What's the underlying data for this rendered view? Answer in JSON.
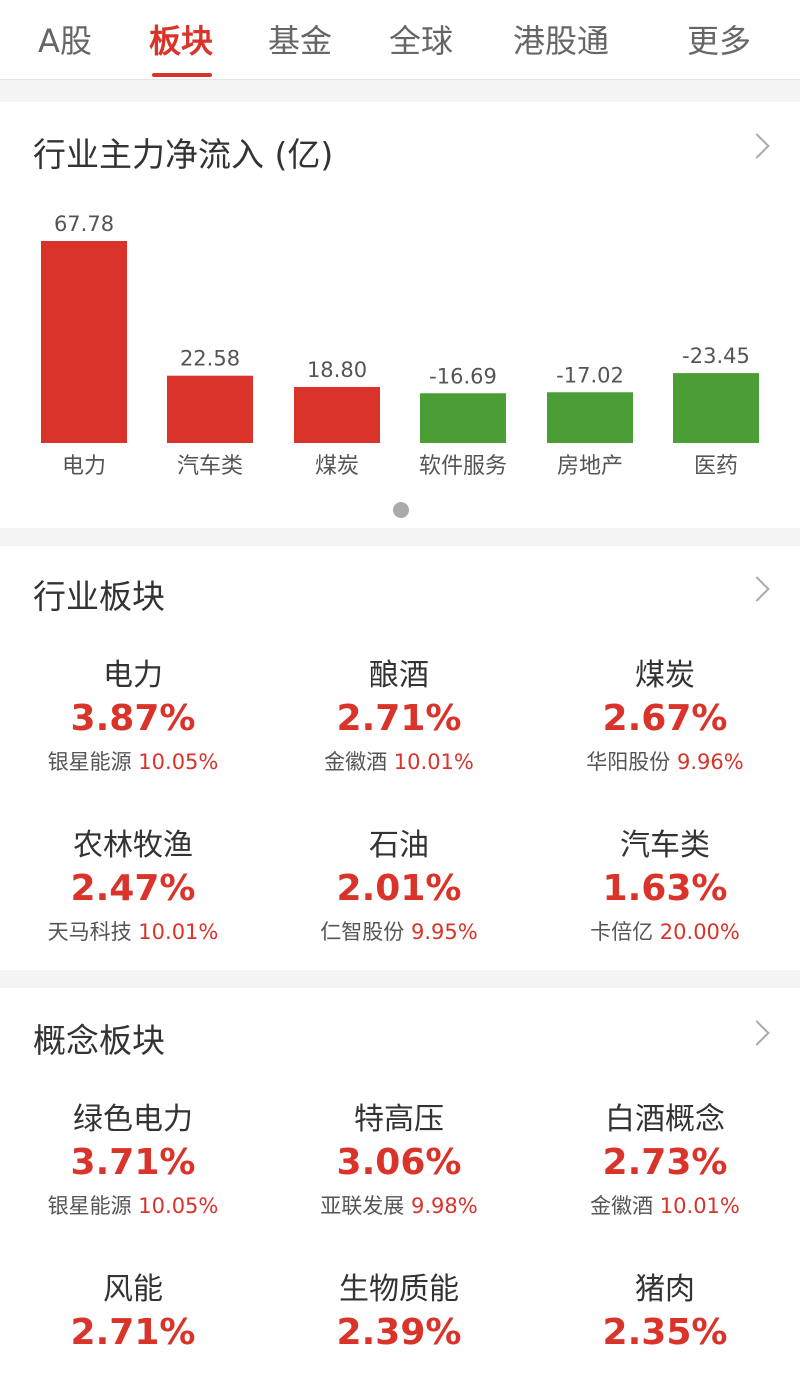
{
  "tabs": [
    {
      "label": "A股"
    },
    {
      "label": "板块",
      "active": true
    },
    {
      "label": "基金"
    },
    {
      "label": "全球"
    },
    {
      "label": "港股通"
    },
    {
      "label": "更多"
    }
  ],
  "flow": {
    "title": "行业主力净流入 (亿)"
  },
  "chart_data": {
    "type": "bar",
    "categories": [
      "电力",
      "汽车类",
      "煤炭",
      "软件服务",
      "房地产",
      "医药"
    ],
    "values": [
      67.78,
      22.58,
      18.8,
      -16.69,
      -17.02,
      -23.45
    ],
    "value_labels": [
      "67.78",
      "22.58",
      "18.80",
      "-16.69",
      "-17.02",
      "-23.45"
    ],
    "colors": {
      "positive": "#d9332a",
      "negative": "#4a9e35"
    }
  },
  "industry": {
    "title": "行业板块",
    "items": [
      {
        "name": "电力",
        "pct": "3.87%",
        "stock": "银星能源",
        "stock_pct": "10.05%"
      },
      {
        "name": "酿酒",
        "pct": "2.71%",
        "stock": "金徽酒",
        "stock_pct": "10.01%"
      },
      {
        "name": "煤炭",
        "pct": "2.67%",
        "stock": "华阳股份",
        "stock_pct": "9.96%"
      },
      {
        "name": "农林牧渔",
        "pct": "2.47%",
        "stock": "天马科技",
        "stock_pct": "10.01%"
      },
      {
        "name": "石油",
        "pct": "2.01%",
        "stock": "仁智股份",
        "stock_pct": "9.95%"
      },
      {
        "name": "汽车类",
        "pct": "1.63%",
        "stock": "卡倍亿",
        "stock_pct": "20.00%"
      }
    ]
  },
  "concept": {
    "title": "概念板块",
    "items": [
      {
        "name": "绿色电力",
        "pct": "3.71%",
        "stock": "银星能源",
        "stock_pct": "10.05%"
      },
      {
        "name": "特高压",
        "pct": "3.06%",
        "stock": "亚联发展",
        "stock_pct": "9.98%"
      },
      {
        "name": "白酒概念",
        "pct": "2.73%",
        "stock": "金徽酒",
        "stock_pct": "10.01%"
      },
      {
        "name": "风能",
        "pct": "2.71%"
      },
      {
        "name": "生物质能",
        "pct": "2.39%"
      },
      {
        "name": "猪肉",
        "pct": "2.35%"
      }
    ]
  }
}
